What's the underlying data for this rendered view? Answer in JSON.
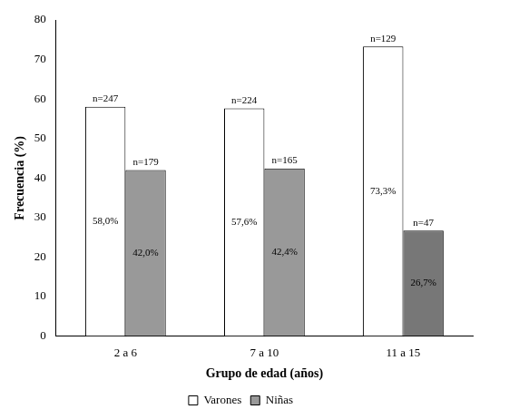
{
  "chart_data": {
    "type": "bar",
    "categories": [
      "2 a 6",
      "7 a 10",
      "11 a 15"
    ],
    "x_label": "Grupo de edad (años)",
    "y_label": "Frecuencia (%)",
    "series": [
      {
        "name": "Varones",
        "color": "#ffffff",
        "values": [
          58.0,
          57.6,
          73.3
        ],
        "value_labels": [
          "58,0%",
          "57,6%",
          "73,3%"
        ],
        "annotations": [
          "n=247",
          "n=224",
          "n=129"
        ]
      },
      {
        "name": "Niñas",
        "color": "#999999",
        "colors": [
          "#999999",
          "#999999",
          "#777777"
        ],
        "values": [
          42.0,
          42.4,
          26.7
        ],
        "value_labels": [
          "42,0%",
          "42,4%",
          "26,7%"
        ],
        "annotations": [
          "n=179",
          "n=165",
          "n=47"
        ]
      }
    ],
    "ylim": [
      0,
      80
    ],
    "yticks": [
      0,
      10,
      20,
      30,
      40,
      50,
      60,
      70,
      80
    ],
    "grid": false,
    "legend": "bottom",
    "data_labels": true
  }
}
